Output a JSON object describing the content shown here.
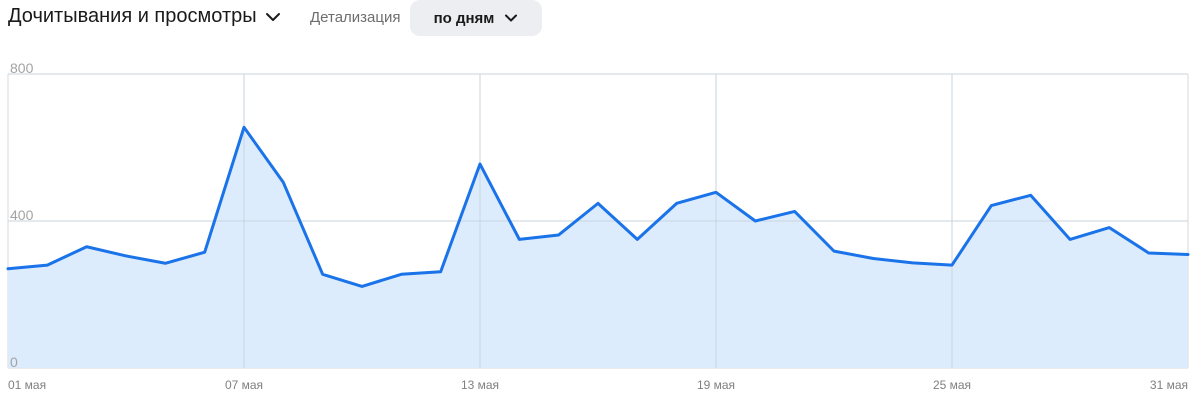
{
  "header": {
    "title": "Дочитывания и просмотры",
    "detail_label": "Детализация",
    "detail_value": "по дням"
  },
  "icons": {
    "title_chevron": "chevron-down-icon",
    "detail_chevron": "chevron-down-icon"
  },
  "colors": {
    "line": "#1a73e8",
    "area": "#d9eafc",
    "grid": "#d9d9d9",
    "select_bg": "#eceef1"
  },
  "chart_data": {
    "type": "area",
    "x": [
      "01 мая",
      "02 мая",
      "03 мая",
      "04 мая",
      "05 мая",
      "06 мая",
      "07 мая",
      "08 мая",
      "09 мая",
      "10 мая",
      "11 мая",
      "12 мая",
      "13 мая",
      "14 мая",
      "15 мая",
      "16 мая",
      "17 мая",
      "18 мая",
      "19 мая",
      "20 мая",
      "21 мая",
      "22 мая",
      "23 мая",
      "24 мая",
      "25 мая",
      "26 мая",
      "27 мая",
      "28 мая",
      "29 мая",
      "30 мая",
      "31 мая"
    ],
    "series": [
      {
        "values": [
          270,
          280,
          330,
          305,
          285,
          315,
          655,
          505,
          255,
          222,
          255,
          262,
          555,
          350,
          362,
          448,
          350,
          448,
          478,
          400,
          426,
          318,
          298,
          286,
          280,
          442,
          470,
          350,
          382,
          313,
          309
        ]
      }
    ],
    "xticks": [
      "01 мая",
      "07 мая",
      "13 мая",
      "19 мая",
      "25 мая",
      "31 мая"
    ],
    "yticks": [
      0,
      400,
      800
    ],
    "ylim": [
      0,
      800
    ],
    "grid": true
  }
}
